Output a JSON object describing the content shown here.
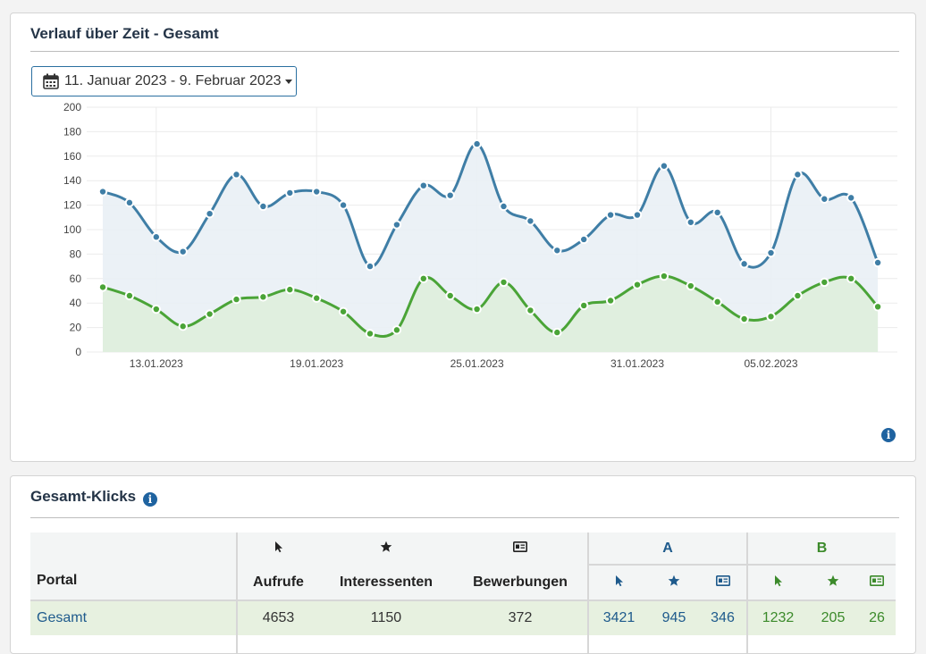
{
  "timeline": {
    "title": "Verlauf über Zeit - Gesamt",
    "date_range": "11. Januar 2023 - 9. Februar 2023"
  },
  "chart_data": {
    "type": "area",
    "x_dates": [
      "11.01.2023",
      "12.01.2023",
      "13.01.2023",
      "14.01.2023",
      "15.01.2023",
      "16.01.2023",
      "17.01.2023",
      "18.01.2023",
      "19.01.2023",
      "20.01.2023",
      "21.01.2023",
      "22.01.2023",
      "23.01.2023",
      "24.01.2023",
      "25.01.2023",
      "26.01.2023",
      "27.01.2023",
      "28.01.2023",
      "29.01.2023",
      "30.01.2023",
      "31.01.2023",
      "01.02.2023",
      "02.02.2023",
      "03.02.2023",
      "04.02.2023",
      "05.02.2023",
      "06.02.2023",
      "07.02.2023",
      "08.02.2023",
      "09.02.2023"
    ],
    "xticks": [
      "13.01.2023",
      "19.01.2023",
      "25.01.2023",
      "31.01.2023",
      "05.02.2023"
    ],
    "yticks": [
      0,
      20,
      40,
      60,
      80,
      100,
      120,
      140,
      160,
      180,
      200
    ],
    "ylim": [
      0,
      200
    ],
    "series": [
      {
        "color": "#3f7ea6",
        "fill": "#e9f0f5",
        "values": [
          131,
          122,
          94,
          82,
          113,
          145,
          119,
          130,
          131,
          120,
          70,
          104,
          136,
          128,
          170,
          119,
          107,
          83,
          92,
          112,
          112,
          152,
          106,
          114,
          72,
          81,
          145,
          125,
          126,
          73
        ]
      },
      {
        "color": "#4aa437",
        "fill": "#dfeedd",
        "values": [
          53,
          46,
          35,
          21,
          31,
          43,
          45,
          51,
          44,
          33,
          15,
          18,
          60,
          46,
          35,
          57,
          34,
          16,
          38,
          42,
          55,
          62,
          54,
          41,
          27,
          29,
          46,
          57,
          60,
          37
        ]
      }
    ],
    "grid": true
  },
  "clicks": {
    "title": "Gesamt-Klicks",
    "columns": {
      "portal": "Portal",
      "aufrufe": "Aufrufe",
      "interessenten": "Interessenten",
      "bewerbungen": "Bewerbungen",
      "group_a": "A",
      "group_b": "B"
    },
    "rows": [
      {
        "portal": "Gesamt",
        "aufrufe": "4653",
        "interessenten": "1150",
        "bewerbungen": "372",
        "a_aufrufe": "3421",
        "a_interessenten": "945",
        "a_bewerbungen": "346",
        "b_aufrufe": "1232",
        "b_interessenten": "205",
        "b_bewerbungen": "26"
      }
    ]
  },
  "icons": {
    "calendar": "calendar-icon",
    "info": "info-icon",
    "cursor": "cursor-icon",
    "star": "star-icon",
    "id_card": "id-card-icon"
  },
  "colors": {
    "blue": "#1e5a8c",
    "green": "#3b8a2a",
    "link": "#1e5a8c"
  }
}
